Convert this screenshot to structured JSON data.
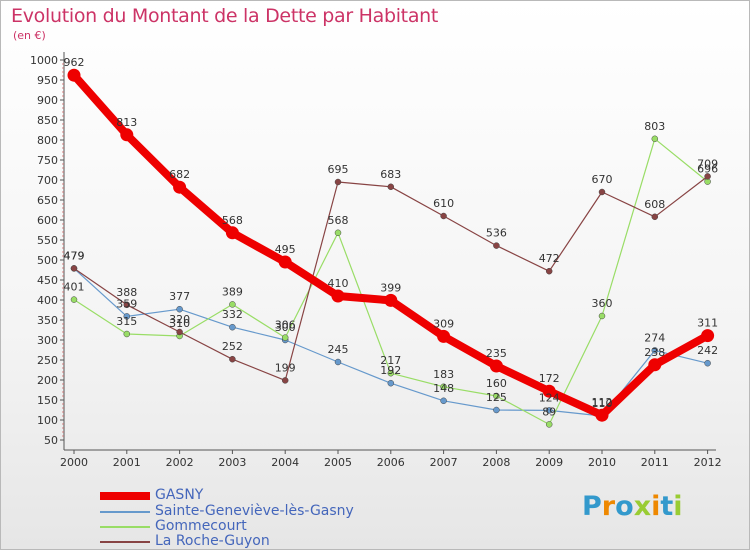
{
  "title": "Evolution du Montant de la Dette par Habitant",
  "subtitle": "(en €)",
  "logo": {
    "letters": [
      "P",
      "r",
      "o",
      "x",
      "i",
      "t",
      "i"
    ],
    "colors": [
      "#3399cc",
      "#ee8800",
      "#3399cc",
      "#99cc33",
      "#ee8800",
      "#3399cc",
      "#99cc33"
    ]
  },
  "chart_data": {
    "type": "line",
    "x": [
      "2000",
      "2001",
      "2002",
      "2003",
      "2004",
      "2005",
      "2006",
      "2007",
      "2008",
      "2009",
      "2010",
      "2011",
      "2012"
    ],
    "ylim": [
      50,
      1000
    ],
    "yticks": [
      50,
      100,
      150,
      200,
      250,
      300,
      350,
      400,
      450,
      500,
      550,
      600,
      650,
      700,
      750,
      800,
      850,
      900,
      950,
      1000
    ],
    "grid": false,
    "legend_position": "bottom-left",
    "series": [
      {
        "name": "GASNY",
        "color": "#ee0000",
        "width": 8,
        "values": [
          962,
          813,
          682,
          568,
          495,
          410,
          399,
          309,
          235,
          172,
          112,
          238,
          311
        ]
      },
      {
        "name": "Sainte-Geneviève-lès-Gasny",
        "color": "#6699cc",
        "width": 1.2,
        "values": [
          479,
          359,
          377,
          332,
          300,
          245,
          192,
          148,
          125,
          124,
          110,
          274,
          242
        ]
      },
      {
        "name": "Gommecourt",
        "color": "#99dd66",
        "width": 1.2,
        "values": [
          401,
          315,
          310,
          389,
          306,
          568,
          217,
          183,
          160,
          89,
          360,
          803,
          696
        ]
      },
      {
        "name": "La Roche-Guyon",
        "color": "#884444",
        "width": 1.2,
        "values": [
          479,
          388,
          320,
          252,
          199,
          695,
          683,
          610,
          536,
          472,
          670,
          608,
          709
        ]
      }
    ]
  }
}
